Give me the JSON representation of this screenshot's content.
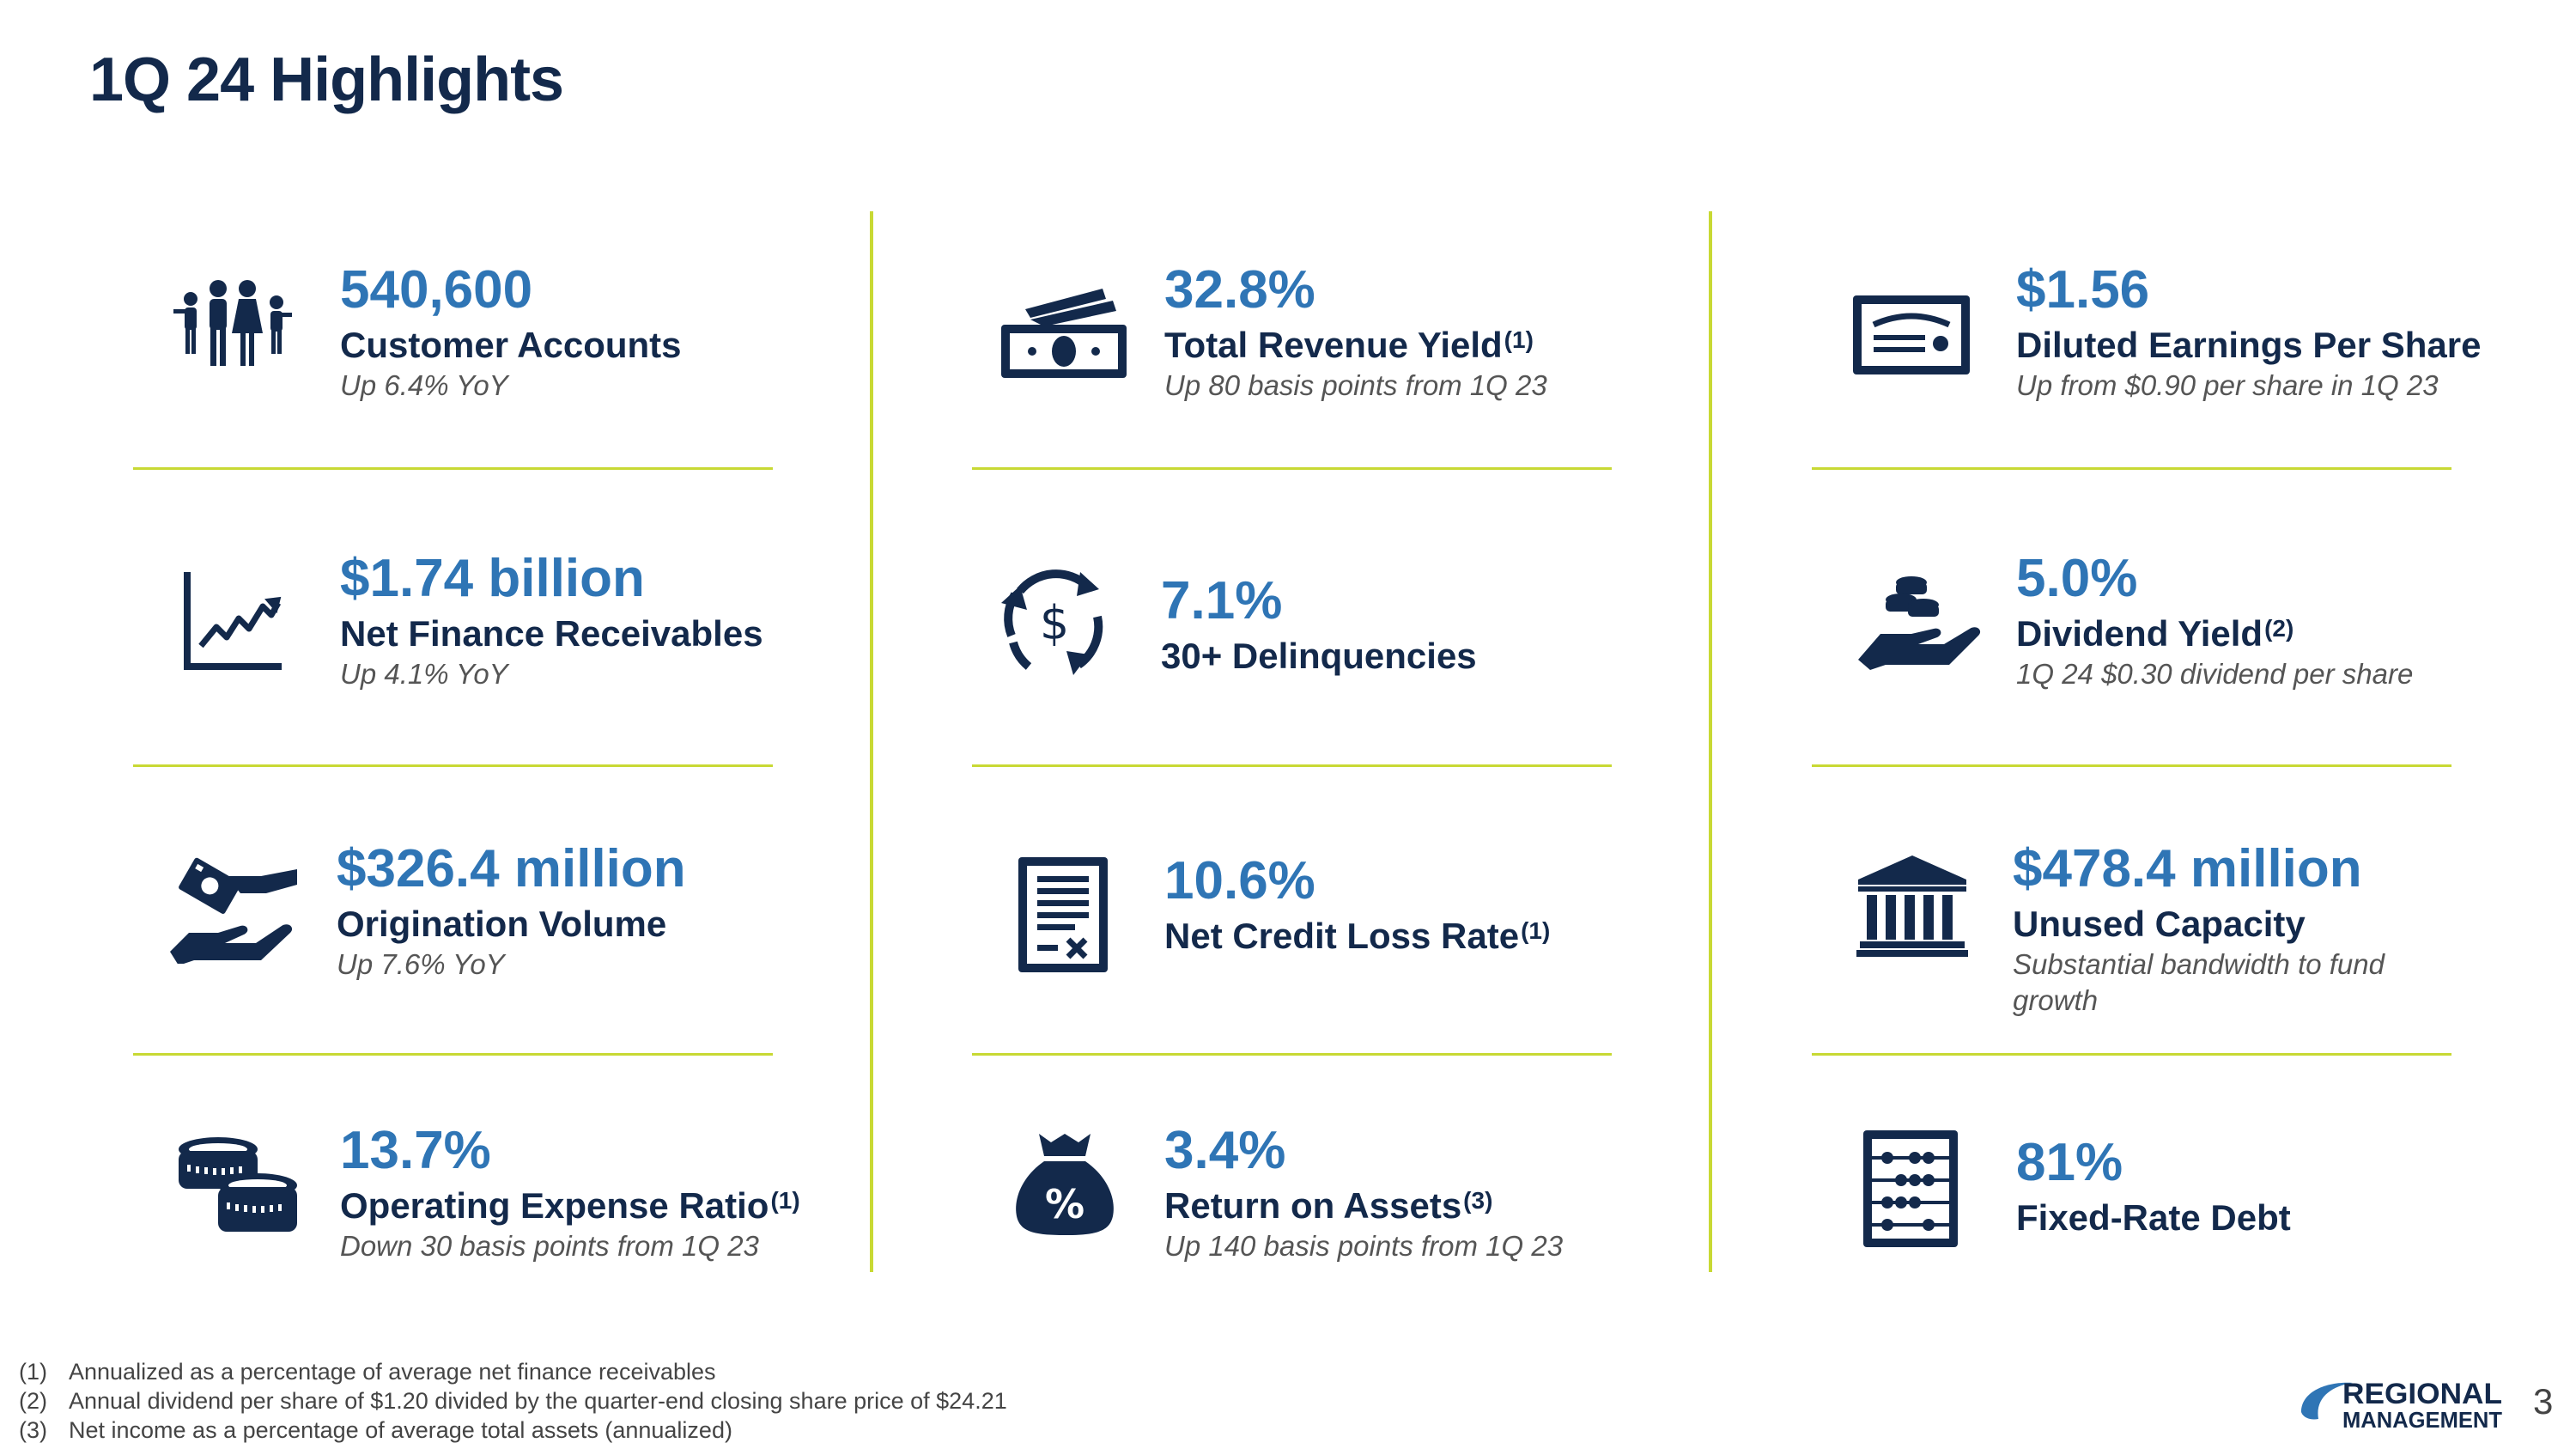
{
  "page": {
    "title": "1Q 24 Highlights",
    "page_number": "3"
  },
  "colors": {
    "navy": "#13294b",
    "blue": "#2f75b5",
    "divider": "#c8d934"
  },
  "columns": [
    {
      "items": [
        {
          "icon": "family-icon",
          "value": "540,600",
          "label": "Customer Accounts",
          "sup": "",
          "sub": "Up 6.4% YoY",
          "sub2": ""
        },
        {
          "icon": "growth-chart-icon",
          "value": "$1.74 billion",
          "label": "Net Finance Receivables",
          "sup": "",
          "sub": "Up 4.1% YoY",
          "sub2": ""
        },
        {
          "icon": "cash-hand-icon",
          "value": "$326.4 million",
          "label": "Origination Volume",
          "sup": "",
          "sub": "Up 7.6% YoY",
          "sub2": ""
        },
        {
          "icon": "coins-stack-icon",
          "value": "13.7%",
          "label": "Operating Expense Ratio",
          "sup": "(1)",
          "sub": "Down 30 basis points from 1Q 23",
          "sub2": ""
        }
      ]
    },
    {
      "items": [
        {
          "icon": "banknotes-icon",
          "value": "32.8%",
          "label": "Total Revenue Yield",
          "sup": "(1)",
          "sub": "Up 80 basis points from 1Q 23",
          "sub2": ""
        },
        {
          "icon": "dollar-cycle-icon",
          "value": "7.1%",
          "label": "30+ Delinquencies",
          "sup": "",
          "sub": "",
          "sub2": ""
        },
        {
          "icon": "document-icon",
          "value": "10.6%",
          "label": "Net Credit Loss Rate",
          "sup": "(1)",
          "sub": "",
          "sub2": ""
        },
        {
          "icon": "money-bag-icon",
          "value": "3.4%",
          "label": "Return on Assets",
          "sup": "(3)",
          "sub": "Up 140 basis points from 1Q 23",
          "sub2": ""
        }
      ]
    },
    {
      "items": [
        {
          "icon": "certificate-icon",
          "value": "$1.56",
          "label": "Diluted Earnings Per Share",
          "sup": "",
          "sub": "Up from $0.90 per share in 1Q 23",
          "sub2": ""
        },
        {
          "icon": "coins-hand-icon",
          "value": "5.0%",
          "label": "Dividend Yield",
          "sup": "(2)",
          "sub": "1Q 24 $0.30 dividend per share",
          "sub2": ""
        },
        {
          "icon": "bank-icon",
          "value": "$478.4 million",
          "label": "Unused Capacity",
          "sup": "",
          "sub": "Substantial bandwidth to fund",
          "sub2": "growth"
        },
        {
          "icon": "abacus-icon",
          "value": "81%",
          "label": "Fixed-Rate Debt",
          "sup": "",
          "sub": "",
          "sub2": ""
        }
      ]
    }
  ],
  "footnotes": [
    {
      "num": "(1)",
      "text": "Annualized as a percentage of average net finance receivables"
    },
    {
      "num": "(2)",
      "text": "Annual dividend per share of $1.20 divided by the quarter-end closing share price of $24.21"
    },
    {
      "num": "(3)",
      "text": "Net income as a percentage of average total assets (annualized)"
    }
  ],
  "logo": {
    "line1": "REGIONAL",
    "line2": "MANAGEMENT"
  }
}
